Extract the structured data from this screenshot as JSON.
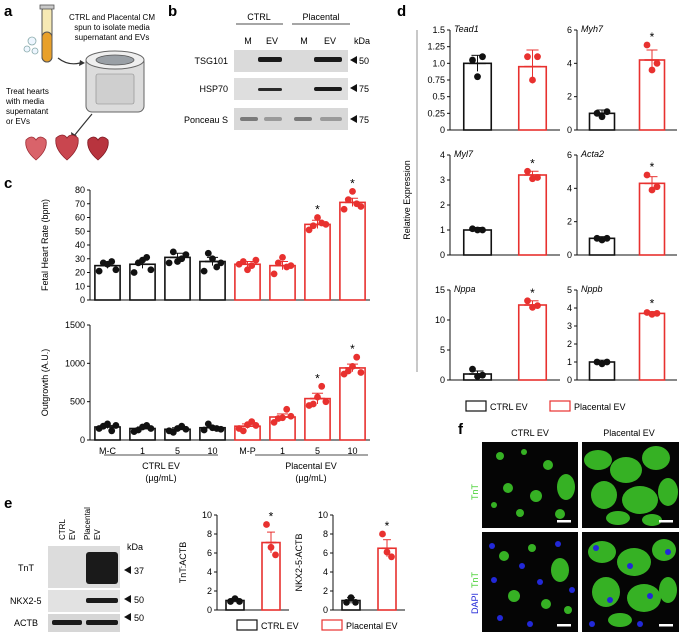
{
  "panels": {
    "a": "a",
    "b": "b",
    "c": "c",
    "d": "d",
    "e": "e",
    "f": "f"
  },
  "panel_a": {
    "caption_top": [
      "CTRL and Placental CM",
      "spun to isolate media",
      "supernatant and EVs"
    ],
    "caption_left": [
      "Treat hearts",
      "with media",
      "supernatant",
      "or EVs"
    ]
  },
  "panel_b": {
    "groups": [
      "CTRL",
      "Placental"
    ],
    "lanes": [
      "M",
      "EV",
      "M",
      "EV"
    ],
    "unit": "kDa",
    "rows": [
      {
        "label": "TSG101",
        "marker": "50"
      },
      {
        "label": "HSP70",
        "marker": "75"
      },
      {
        "label": "Ponceau S",
        "marker": "75"
      }
    ]
  },
  "panel_c_xaxis": {
    "ticks": [
      "M-C",
      "1",
      "5",
      "10",
      "M-P",
      "1",
      "5",
      "10"
    ],
    "group_ctrl": "CTRL EV",
    "group_plac": "Placental EV",
    "unit": "(µg/mL)"
  },
  "panel_d": {
    "shared_ylabel": "Relative Expression"
  },
  "legend": {
    "ctrl": "CTRL EV",
    "plac": "Placental EV"
  },
  "panel_e_blot": {
    "lanes": [
      "CTRL\nEV",
      "Placental\nEV"
    ],
    "lane1": "CTRL",
    "lane1b": "EV",
    "lane2": "Placental",
    "lane2b": "EV",
    "unit": "kDa",
    "rows": [
      {
        "label": "TnT",
        "marker": "37"
      },
      {
        "label": "NKX2-5",
        "marker": "50"
      },
      {
        "label": "ACTB",
        "marker": "50"
      }
    ]
  },
  "panel_f": {
    "col_ctrl": "CTRL EV",
    "col_plac": "Placental EV",
    "row1_label": "TnT",
    "row2_label_a": "DAPI",
    "row2_label_b": "TnT"
  },
  "colors": {
    "ctrl": "#111111",
    "plac": "#e8312f",
    "tnt": "#3fcf2a",
    "dapi": "#2228d8"
  },
  "chart_data": [
    {
      "id": "c_top",
      "type": "bar",
      "categories": [
        "M-C",
        "1",
        "5",
        "10",
        "M-P",
        "1",
        "5",
        "10"
      ],
      "values": [
        25,
        26,
        31,
        28,
        26,
        25,
        55,
        71
      ],
      "errors": [
        2,
        3,
        3,
        3,
        2,
        3,
        3,
        3
      ],
      "colors": [
        "ctrl",
        "ctrl",
        "ctrl",
        "ctrl",
        "plac",
        "plac",
        "plac",
        "plac"
      ],
      "points": [
        [
          21,
          27,
          26,
          28,
          22
        ],
        [
          20,
          27,
          29,
          31,
          22
        ],
        [
          27,
          35,
          28,
          30,
          33
        ],
        [
          21,
          34,
          30,
          24,
          27
        ],
        [
          26,
          28,
          22,
          25,
          29
        ],
        [
          19,
          27,
          31,
          24,
          25
        ],
        [
          51,
          54,
          60,
          56,
          55
        ],
        [
          66,
          73,
          79,
          70,
          68
        ]
      ],
      "significant": [
        false,
        false,
        false,
        false,
        false,
        false,
        true,
        true
      ],
      "ylabel": "Fetal Heart Rate (bpm)",
      "ylim": [
        0,
        80
      ],
      "yticks": [
        0,
        10,
        20,
        30,
        40,
        50,
        60,
        70,
        80
      ]
    },
    {
      "id": "c_bottom",
      "type": "bar",
      "categories": [
        "M-C",
        "1",
        "5",
        "10",
        "M-P",
        "1",
        "5",
        "10"
      ],
      "values": [
        170,
        150,
        140,
        160,
        180,
        300,
        540,
        940
      ],
      "errors": [
        20,
        20,
        20,
        20,
        30,
        40,
        70,
        50
      ],
      "colors": [
        "ctrl",
        "ctrl",
        "ctrl",
        "ctrl",
        "plac",
        "plac",
        "plac",
        "plac"
      ],
      "points": [
        [
          150,
          180,
          210,
          120,
          190
        ],
        [
          110,
          130,
          170,
          190,
          150
        ],
        [
          120,
          100,
          150,
          180,
          140
        ],
        [
          130,
          210,
          160,
          150,
          140
        ],
        [
          150,
          120,
          200,
          240,
          190
        ],
        [
          230,
          280,
          290,
          400,
          310
        ],
        [
          450,
          470,
          560,
          700,
          500
        ],
        [
          860,
          900,
          960,
          1080,
          880
        ]
      ],
      "significant": [
        false,
        false,
        false,
        false,
        false,
        false,
        true,
        true
      ],
      "ylabel": "Outgrowth (A.U.)",
      "ylim": [
        0,
        1500
      ],
      "yticks": [
        0,
        500,
        1000,
        1500
      ]
    },
    {
      "id": "d_tead1",
      "type": "bar",
      "title": "Tead1",
      "categories": [
        "CTRL EV",
        "Placental EV"
      ],
      "values": [
        1.0,
        0.95
      ],
      "errors": [
        0.12,
        0.25
      ],
      "points": [
        [
          1.05,
          0.8,
          1.1
        ],
        [
          1.1,
          0.75,
          1.1
        ]
      ],
      "significant": [
        false,
        false
      ],
      "ylim": [
        0,
        1.5
      ],
      "yticks": [
        0,
        0.25,
        0.5,
        0.75,
        1.0,
        1.25,
        1.5
      ],
      "yticklabels": [
        "0",
        "0.25",
        "0.5",
        "0.75",
        "1.0",
        "1.25",
        "1.5"
      ]
    },
    {
      "id": "d_myh7",
      "type": "bar",
      "title": "Myh7",
      "categories": [
        "CTRL EV",
        "Placental EV"
      ],
      "values": [
        1.0,
        4.2
      ],
      "errors": [
        0.2,
        0.6
      ],
      "points": [
        [
          1.0,
          0.8,
          1.1
        ],
        [
          5.1,
          3.6,
          4.0
        ]
      ],
      "significant": [
        false,
        true
      ],
      "ylim": [
        0,
        6
      ],
      "yticks": [
        0,
        2,
        4,
        6
      ],
      "yticklabels": [
        "0",
        "2",
        "4",
        "6"
      ]
    },
    {
      "id": "d_myl7",
      "type": "bar",
      "title": "Myl7",
      "categories": [
        "CTRL EV",
        "Placental EV"
      ],
      "values": [
        1.0,
        3.2
      ],
      "errors": [
        0.1,
        0.15
      ],
      "points": [
        [
          1.05,
          1.0,
          1.0
        ],
        [
          3.35,
          3.05,
          3.1
        ]
      ],
      "significant": [
        false,
        true
      ],
      "ylim": [
        0,
        4
      ],
      "yticks": [
        0,
        1,
        2,
        3,
        4
      ],
      "yticklabels": [
        "0",
        "1",
        "2",
        "3",
        "4"
      ]
    },
    {
      "id": "d_acta2",
      "type": "bar",
      "title": "Acta2",
      "categories": [
        "CTRL EV",
        "Placental EV"
      ],
      "values": [
        1.0,
        4.3
      ],
      "errors": [
        0.1,
        0.4
      ],
      "points": [
        [
          1.0,
          0.9,
          1.0
        ],
        [
          4.8,
          3.9,
          4.1
        ]
      ],
      "significant": [
        false,
        true
      ],
      "ylim": [
        0,
        6
      ],
      "yticks": [
        0,
        2,
        4,
        6
      ],
      "yticklabels": [
        "0",
        "2",
        "4",
        "6"
      ]
    },
    {
      "id": "d_nppa",
      "type": "bar",
      "title": "Nppa",
      "categories": [
        "CTRL EV",
        "Placental EV"
      ],
      "values": [
        1.0,
        12.5
      ],
      "errors": [
        0.5,
        0.7
      ],
      "points": [
        [
          1.8,
          0.6,
          0.8
        ],
        [
          13.2,
          12.1,
          12.4
        ]
      ],
      "significant": [
        false,
        true
      ],
      "ylim": [
        0,
        15
      ],
      "yticks": [
        0,
        5,
        10,
        15
      ],
      "yticklabels": [
        "0",
        "5",
        "10",
        "15"
      ]
    },
    {
      "id": "d_nppb",
      "type": "bar",
      "title": "Nppb",
      "categories": [
        "CTRL EV",
        "Placental EV"
      ],
      "values": [
        1.0,
        3.7
      ],
      "errors": [
        0.1,
        0.1
      ],
      "points": [
        [
          1.0,
          0.9,
          1.0
        ],
        [
          3.75,
          3.65,
          3.7
        ]
      ],
      "significant": [
        false,
        true
      ],
      "ylim": [
        0,
        5
      ],
      "yticks": [
        0,
        1,
        2,
        3,
        4,
        5
      ],
      "yticklabels": [
        "0",
        "1",
        "2",
        "3",
        "4",
        "5"
      ]
    },
    {
      "id": "e_tnt",
      "type": "bar",
      "categories": [
        "CTRL EV",
        "Placental EV"
      ],
      "values": [
        1.0,
        7.1
      ],
      "errors": [
        0.2,
        1.1
      ],
      "points": [
        [
          0.9,
          1.2,
          0.9
        ],
        [
          9.0,
          6.6,
          5.8
        ]
      ],
      "significant": [
        false,
        true
      ],
      "ylabel": "TnT:ACTB",
      "ylim": [
        0,
        10
      ],
      "yticks": [
        0,
        2,
        4,
        6,
        8,
        10
      ],
      "yticklabels": [
        "0",
        "2",
        "4",
        "6",
        "8",
        "10"
      ]
    },
    {
      "id": "e_nkx",
      "type": "bar",
      "categories": [
        "CTRL EV",
        "Placental EV"
      ],
      "values": [
        1.0,
        6.5
      ],
      "errors": [
        0.3,
        0.9
      ],
      "points": [
        [
          0.8,
          1.3,
          0.8
        ],
        [
          8.0,
          6.1,
          5.6
        ]
      ],
      "significant": [
        false,
        true
      ],
      "ylabel": "NKX2-5:ACTB",
      "ylim": [
        0,
        10
      ],
      "yticks": [
        0,
        2,
        4,
        6,
        8,
        10
      ],
      "yticklabels": [
        "0",
        "2",
        "4",
        "6",
        "8",
        "10"
      ]
    }
  ]
}
